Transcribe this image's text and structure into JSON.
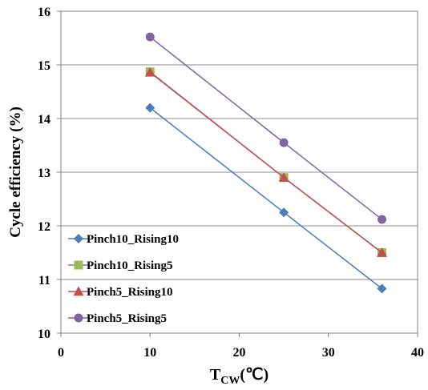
{
  "chart_data": {
    "type": "line",
    "xlabel": {
      "main": "T",
      "sub": "CW",
      "unit": "(℃)"
    },
    "ylabel": "Cycle efficiency (%)",
    "xlim": [
      0,
      40
    ],
    "ylim": [
      10,
      16
    ],
    "x_ticks": [
      "0",
      "10",
      "20",
      "30",
      "40"
    ],
    "y_ticks": [
      "10",
      "11",
      "12",
      "13",
      "14",
      "15",
      "16"
    ],
    "grid": {
      "horizontal": true,
      "vertical": false
    },
    "legend_position": "bottom-left",
    "series": [
      {
        "name": "Pinch10_Rising10",
        "marker": "diamond",
        "color": "#4A7EBB",
        "points": [
          [
            10,
            14.2
          ],
          [
            25,
            12.25
          ],
          [
            36,
            10.83
          ]
        ]
      },
      {
        "name": "Pinch10_Rising5",
        "marker": "square",
        "color": "#9BBB59",
        "line_color": "#8A6FA8",
        "points": [
          [
            10,
            14.87
          ],
          [
            25,
            12.9
          ],
          [
            36,
            11.5
          ]
        ]
      },
      {
        "name": "Pinch5_Rising10",
        "marker": "triangle",
        "color": "#C0504D",
        "points": [
          [
            10,
            14.86
          ],
          [
            25,
            12.9
          ],
          [
            36,
            11.5
          ]
        ]
      },
      {
        "name": "Pinch5_Rising5",
        "marker": "circle",
        "color": "#8064A2",
        "points": [
          [
            10,
            15.52
          ],
          [
            25,
            13.55
          ],
          [
            36,
            12.12
          ]
        ]
      }
    ]
  }
}
